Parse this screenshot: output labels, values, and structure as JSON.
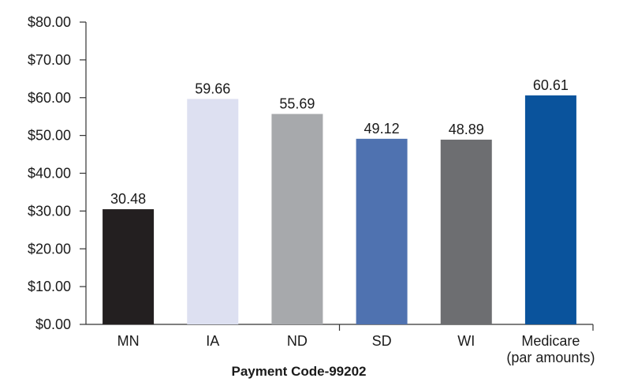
{
  "chart_data": {
    "type": "bar",
    "xlabel": "Payment Code-99202",
    "ylabel": "",
    "ylim": [
      0,
      80
    ],
    "y_ticks": [
      0,
      10,
      20,
      30,
      40,
      50,
      60,
      70,
      80
    ],
    "y_tick_labels": [
      "$0.00",
      "$10.00",
      "$20.00",
      "$30.00",
      "$40.00",
      "$50.00",
      "$60.00",
      "$70.00",
      "$80.00"
    ],
    "categories": [
      "MN",
      "IA",
      "ND",
      "SD",
      "WI",
      "Medicare"
    ],
    "category_sublabels": [
      "",
      "",
      "",
      "",
      "",
      "(par amounts)"
    ],
    "values": [
      30.48,
      59.66,
      55.69,
      49.12,
      48.89,
      60.61
    ],
    "data_labels": [
      "30.48",
      "59.66",
      "55.69",
      "49.12",
      "48.89",
      "60.61"
    ],
    "colors": [
      "#231f20",
      "#dde0f1",
      "#a7a9ac",
      "#4f72b0",
      "#6d6e71",
      "#0a539c"
    ],
    "grid": false,
    "legend": "none"
  }
}
